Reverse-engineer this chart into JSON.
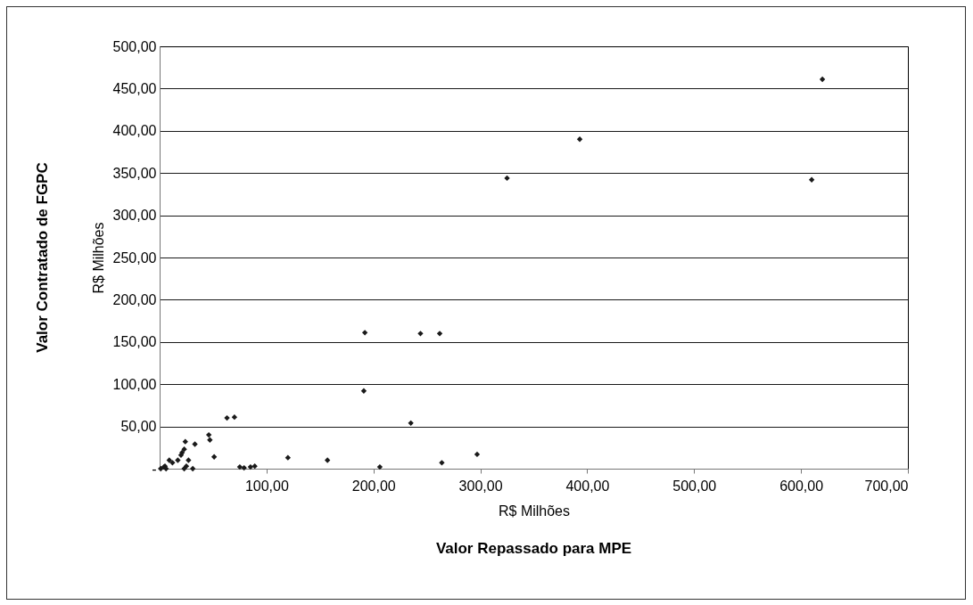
{
  "chart_data": {
    "type": "scatter",
    "xlabel": "Valor Repassado para MPE",
    "ylabel": "Valor Contratado de FGPC",
    "annotations": [
      "R$ Milhões",
      "R$ Milhões"
    ],
    "xlim": [
      0,
      700
    ],
    "ylim": [
      0,
      500
    ],
    "xticks": [
      {
        "value": 100,
        "label": "100,00"
      },
      {
        "value": 200,
        "label": "200,00"
      },
      {
        "value": 300,
        "label": "300,00"
      },
      {
        "value": 400,
        "label": "400,00"
      },
      {
        "value": 500,
        "label": "500,00"
      },
      {
        "value": 600,
        "label": "600,00"
      },
      {
        "value": 700,
        "label": "700,00"
      }
    ],
    "yticks": [
      {
        "value": 0,
        "label": "-"
      },
      {
        "value": 50,
        "label": "50,00"
      },
      {
        "value": 100,
        "label": "100,00"
      },
      {
        "value": 150,
        "label": "150,00"
      },
      {
        "value": 200,
        "label": "200,00"
      },
      {
        "value": 250,
        "label": "250,00"
      },
      {
        "value": 300,
        "label": "300,00"
      },
      {
        "value": 350,
        "label": "350,00"
      },
      {
        "value": 400,
        "label": "400,00"
      },
      {
        "value": 450,
        "label": "450,00"
      },
      {
        "value": 500,
        "label": "500,00"
      }
    ],
    "grid": "y",
    "marker": "diamond",
    "legend": false,
    "series": [
      {
        "color": "#1a1a1a",
        "x": [
          192,
          244,
          262,
          191,
          235,
          63,
          70,
          46,
          47,
          33,
          51,
          24,
          23,
          21,
          20,
          27,
          25,
          23,
          31,
          17,
          12,
          9,
          5,
          1,
          4,
          6,
          75,
          79,
          85,
          89,
          120,
          157,
          206,
          264,
          297,
          620,
          393,
          325,
          610
        ],
        "values": [
          161,
          160,
          160,
          92,
          54,
          60,
          61,
          40,
          34,
          29,
          14,
          32,
          23,
          19,
          16,
          10,
          3,
          0,
          0,
          10,
          7,
          10,
          3,
          0,
          2,
          0,
          2,
          1,
          2,
          3,
          13,
          10,
          2,
          7,
          17,
          461,
          390,
          344,
          342
        ]
      }
    ]
  }
}
